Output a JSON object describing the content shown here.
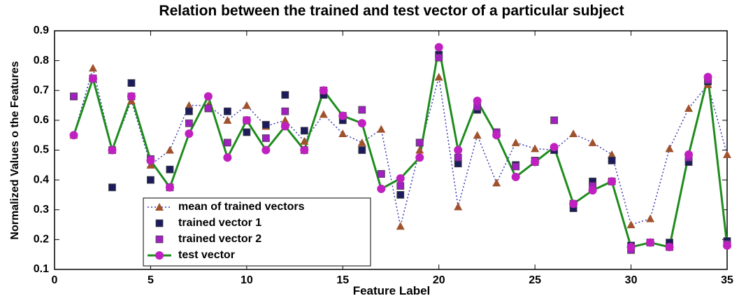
{
  "chart_data": {
    "type": "line",
    "title": "Relation between the trained and test vector of a particular subject",
    "xlabel": "Feature Label",
    "ylabel": "Normalized Values o the Features",
    "x": [
      1,
      2,
      3,
      4,
      5,
      6,
      7,
      8,
      9,
      10,
      11,
      12,
      13,
      14,
      15,
      16,
      17,
      18,
      19,
      20,
      21,
      22,
      23,
      24,
      25,
      26,
      27,
      28,
      29,
      30,
      31,
      32,
      33,
      34,
      35
    ],
    "series": [
      {
        "name": "mean of trained vectors",
        "color": "#a0522d",
        "marker": "triangle",
        "line": "dotted",
        "line_color": "#3a3ab0",
        "values": [
          0.55,
          0.775,
          0.5,
          0.665,
          0.45,
          0.5,
          0.65,
          0.65,
          0.6,
          0.65,
          0.58,
          0.6,
          0.53,
          0.62,
          0.555,
          0.525,
          0.57,
          0.245,
          0.5,
          0.745,
          0.31,
          0.55,
          0.39,
          0.525,
          0.505,
          0.5,
          0.555,
          0.525,
          0.485,
          0.25,
          0.27,
          0.505,
          0.64,
          0.72,
          0.485
        ]
      },
      {
        "name": "trained vector 1",
        "color": "#1c1c5c",
        "marker": "square",
        "line": "none",
        "line_color": "#1c1c5c",
        "values": [
          0.68,
          0.74,
          0.375,
          0.725,
          0.4,
          0.435,
          0.63,
          0.64,
          0.63,
          0.56,
          0.585,
          0.685,
          0.565,
          0.685,
          0.6,
          0.5,
          0.42,
          0.35,
          0.525,
          0.82,
          0.455,
          0.635,
          0.555,
          0.45,
          0.46,
          0.5,
          0.305,
          0.395,
          0.465,
          0.18,
          0.19,
          0.19,
          0.46,
          0.73,
          0.195
        ]
      },
      {
        "name": "trained vector 2",
        "color": "#a020c0",
        "marker": "square",
        "line": "none",
        "line_color": "#a020c0",
        "values": [
          0.68,
          0.74,
          0.5,
          0.68,
          0.47,
          0.375,
          0.59,
          0.64,
          0.525,
          0.6,
          0.54,
          0.63,
          0.5,
          0.7,
          0.615,
          0.635,
          0.42,
          0.38,
          0.525,
          0.81,
          0.475,
          0.645,
          0.56,
          0.445,
          0.465,
          0.6,
          0.32,
          0.38,
          0.395,
          0.165,
          0.19,
          0.175,
          0.475,
          0.735,
          0.185
        ]
      },
      {
        "name": "test vector",
        "color": "#c020c0",
        "marker": "circle",
        "line": "solid",
        "line_color": "#1e8c1e",
        "values": [
          0.55,
          0.74,
          0.5,
          0.68,
          0.465,
          0.375,
          0.555,
          0.68,
          0.475,
          0.6,
          0.5,
          0.58,
          0.5,
          0.7,
          0.615,
          0.59,
          0.37,
          0.405,
          0.475,
          0.845,
          0.5,
          0.665,
          0.55,
          0.41,
          0.46,
          0.51,
          0.32,
          0.365,
          0.395,
          0.175,
          0.19,
          0.175,
          0.485,
          0.745,
          0.18
        ]
      }
    ],
    "xlim": [
      0,
      35
    ],
    "xticks": [
      0,
      5,
      10,
      15,
      20,
      25,
      30,
      35
    ],
    "ylim": [
      0.1,
      0.9
    ],
    "yticks": [
      0.1,
      0.2,
      0.3,
      0.4,
      0.5,
      0.6,
      0.7,
      0.8,
      0.9
    ],
    "grid": false,
    "legend": "lower left"
  }
}
